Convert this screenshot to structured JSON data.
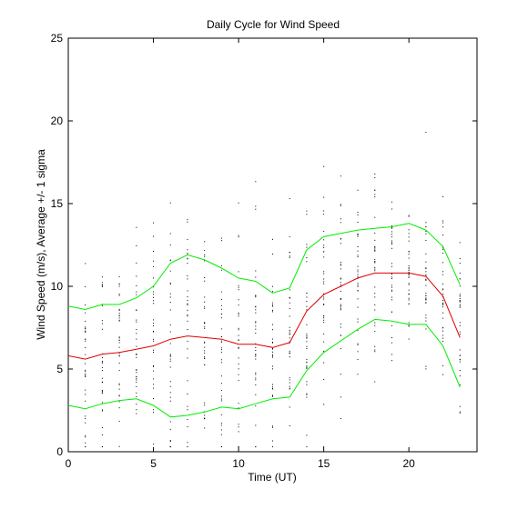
{
  "chart_data": {
    "type": "line",
    "title": "Daily Cycle for Wind Speed",
    "xlabel": "Time (UT)",
    "ylabel": "Wind Speed (m/s), Average +/- 1 sigma",
    "xlim": [
      0,
      24
    ],
    "ylim": [
      0,
      25
    ],
    "xticks": [
      0,
      5,
      10,
      15,
      20
    ],
    "yticks": [
      0,
      5,
      10,
      15,
      20,
      25
    ],
    "grid": false,
    "x": [
      0,
      1,
      2,
      3,
      4,
      5,
      6,
      7,
      8,
      9,
      10,
      11,
      12,
      13,
      14,
      15,
      16,
      17,
      18,
      19,
      20,
      21,
      22,
      23
    ],
    "series": [
      {
        "color": "#00ee00",
        "values": [
          8.8,
          8.6,
          8.9,
          8.9,
          9.3,
          10.0,
          11.4,
          11.9,
          11.6,
          11.1,
          10.5,
          10.3,
          9.6,
          9.9,
          12.2,
          13.0,
          13.2,
          13.4,
          13.5,
          13.6,
          13.8,
          13.4,
          12.4,
          10.1
        ]
      },
      {
        "color": "#dd0000",
        "values": [
          5.8,
          5.6,
          5.9,
          6.0,
          6.2,
          6.4,
          6.8,
          7.0,
          6.9,
          6.8,
          6.5,
          6.5,
          6.3,
          6.6,
          8.5,
          9.5,
          10.0,
          10.5,
          10.8,
          10.8,
          10.8,
          10.6,
          9.4,
          6.9
        ]
      },
      {
        "color": "#00ee00",
        "values": [
          2.8,
          2.6,
          2.9,
          3.1,
          3.2,
          2.8,
          2.1,
          2.2,
          2.4,
          2.7,
          2.6,
          2.9,
          3.2,
          3.3,
          4.9,
          6.0,
          6.7,
          7.4,
          8.0,
          7.9,
          7.7,
          7.7,
          6.4,
          3.9
        ]
      }
    ]
  }
}
